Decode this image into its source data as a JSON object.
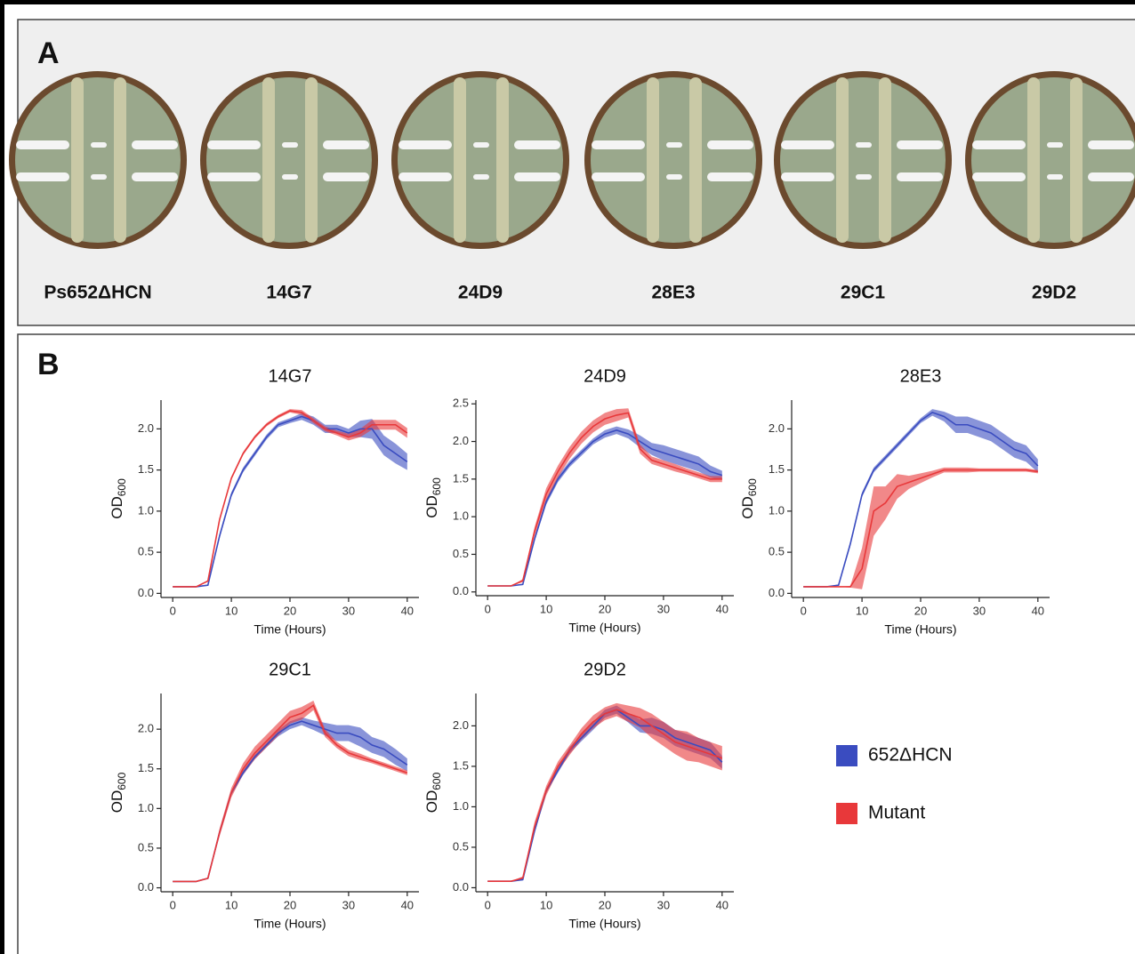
{
  "panel_a": {
    "label": "A",
    "plates": [
      "Ps652ΔHCN",
      "14G7",
      "24D9",
      "28E3",
      "29C1",
      "29D2"
    ]
  },
  "panel_b": {
    "label": "B"
  },
  "chart_data": [
    {
      "type": "line",
      "title": "14G7",
      "xlabel": "Time (Hours)",
      "ylabel": "OD",
      "ylabel_sub": "600",
      "x": [
        0,
        2,
        4,
        6,
        8,
        10,
        12,
        14,
        16,
        18,
        20,
        22,
        24,
        26,
        28,
        30,
        32,
        34,
        36,
        38,
        40
      ],
      "xlim": [
        -2,
        42
      ],
      "xticks": [
        0,
        10,
        20,
        30,
        40
      ],
      "ylim": [
        -0.05,
        2.35
      ],
      "yticks": [
        {
          "value": 0,
          "label": "0.0"
        },
        0.5,
        {
          "value": 1,
          "label": "1.0"
        },
        1.5,
        {
          "value": 2,
          "label": "2.0"
        }
      ],
      "series": [
        {
          "name": "652ΔHCN",
          "color": "#3a4cc0",
          "values": [
            0.08,
            0.08,
            0.08,
            0.1,
            0.7,
            1.2,
            1.5,
            1.7,
            1.9,
            2.05,
            2.1,
            2.15,
            2.1,
            2.0,
            2.0,
            1.95,
            2.0,
            2.0,
            1.8,
            1.7,
            1.6
          ],
          "error": [
            0,
            0,
            0,
            0.01,
            0.03,
            0.03,
            0.03,
            0.03,
            0.03,
            0.03,
            0.03,
            0.04,
            0.05,
            0.05,
            0.05,
            0.05,
            0.1,
            0.12,
            0.12,
            0.12,
            0.1
          ]
        },
        {
          "name": "Mutant",
          "color": "#e8383a",
          "values": [
            0.08,
            0.08,
            0.08,
            0.15,
            0.9,
            1.4,
            1.7,
            1.9,
            2.05,
            2.15,
            2.22,
            2.2,
            2.1,
            2.0,
            1.95,
            1.9,
            1.95,
            2.05,
            2.05,
            2.05,
            1.95
          ],
          "error": [
            0,
            0,
            0,
            0.01,
            0.02,
            0.02,
            0.02,
            0.02,
            0.02,
            0.02,
            0.02,
            0.03,
            0.03,
            0.03,
            0.03,
            0.04,
            0.05,
            0.06,
            0.06,
            0.06,
            0.06
          ]
        }
      ]
    },
    {
      "type": "line",
      "title": "24D9",
      "xlabel": "Time (Hours)",
      "ylabel": "OD",
      "ylabel_sub": "600",
      "x": [
        0,
        2,
        4,
        6,
        8,
        10,
        12,
        14,
        16,
        18,
        20,
        22,
        24,
        26,
        28,
        30,
        32,
        34,
        36,
        38,
        40
      ],
      "xlim": [
        -2,
        42
      ],
      "xticks": [
        0,
        10,
        20,
        30,
        40
      ],
      "ylim": [
        -0.05,
        2.55
      ],
      "yticks": [
        {
          "value": 0,
          "label": "0.0"
        },
        0.5,
        {
          "value": 1,
          "label": "1.0"
        },
        1.5,
        {
          "value": 2,
          "label": "2.0"
        },
        2.5
      ],
      "series": [
        {
          "name": "652ΔHCN",
          "color": "#3a4cc0",
          "values": [
            0.08,
            0.08,
            0.08,
            0.1,
            0.7,
            1.2,
            1.5,
            1.7,
            1.85,
            2.0,
            2.1,
            2.15,
            2.1,
            2.0,
            1.9,
            1.85,
            1.8,
            1.75,
            1.7,
            1.6,
            1.55
          ],
          "error": [
            0,
            0,
            0,
            0.01,
            0.03,
            0.04,
            0.04,
            0.04,
            0.04,
            0.04,
            0.05,
            0.05,
            0.06,
            0.08,
            0.08,
            0.1,
            0.1,
            0.1,
            0.1,
            0.08,
            0.06
          ]
        },
        {
          "name": "Mutant",
          "color": "#e8383a",
          "values": [
            0.08,
            0.08,
            0.08,
            0.15,
            0.8,
            1.3,
            1.6,
            1.85,
            2.05,
            2.2,
            2.3,
            2.35,
            2.38,
            1.9,
            1.75,
            1.7,
            1.65,
            1.6,
            1.55,
            1.5,
            1.5
          ],
          "error": [
            0,
            0,
            0,
            0.02,
            0.06,
            0.08,
            0.08,
            0.08,
            0.08,
            0.08,
            0.08,
            0.08,
            0.06,
            0.06,
            0.05,
            0.05,
            0.05,
            0.04,
            0.04,
            0.04,
            0.04
          ]
        }
      ]
    },
    {
      "type": "line",
      "title": "28E3",
      "xlabel": "Time (Hours)",
      "ylabel": "OD",
      "ylabel_sub": "600",
      "x": [
        0,
        2,
        4,
        6,
        8,
        10,
        12,
        14,
        16,
        18,
        20,
        22,
        24,
        26,
        28,
        30,
        32,
        34,
        36,
        38,
        40
      ],
      "xlim": [
        -2,
        42
      ],
      "xticks": [
        0,
        10,
        20,
        30,
        40
      ],
      "ylim": [
        -0.05,
        2.35
      ],
      "yticks": [
        {
          "value": 0,
          "label": "0.0"
        },
        0.5,
        {
          "value": 1,
          "label": "1.0"
        },
        1.5,
        {
          "value": 2,
          "label": "2.0"
        }
      ],
      "series": [
        {
          "name": "652ΔHCN",
          "color": "#3a4cc0",
          "values": [
            0.08,
            0.08,
            0.08,
            0.1,
            0.6,
            1.2,
            1.5,
            1.65,
            1.8,
            1.95,
            2.1,
            2.2,
            2.15,
            2.05,
            2.05,
            2.0,
            1.95,
            1.85,
            1.75,
            1.7,
            1.55
          ],
          "error": [
            0,
            0,
            0,
            0.01,
            0.03,
            0.03,
            0.03,
            0.03,
            0.03,
            0.03,
            0.03,
            0.04,
            0.06,
            0.1,
            0.1,
            0.1,
            0.1,
            0.1,
            0.1,
            0.1,
            0.08
          ]
        },
        {
          "name": "Mutant",
          "color": "#e8383a",
          "values": [
            0.08,
            0.08,
            0.08,
            0.08,
            0.08,
            0.3,
            1.0,
            1.1,
            1.3,
            1.35,
            1.4,
            1.45,
            1.5,
            1.5,
            1.5,
            1.5,
            1.5,
            1.5,
            1.5,
            1.5,
            1.48
          ],
          "error": [
            0,
            0,
            0,
            0,
            0.01,
            0.25,
            0.3,
            0.2,
            0.15,
            0.08,
            0.06,
            0.04,
            0.03,
            0.03,
            0.03,
            0.02,
            0.02,
            0.02,
            0.02,
            0.02,
            0.02
          ]
        }
      ]
    },
    {
      "type": "line",
      "title": "29C1",
      "xlabel": "Time (Hours)",
      "ylabel": "OD",
      "ylabel_sub": "600",
      "x": [
        0,
        2,
        4,
        6,
        8,
        10,
        12,
        14,
        16,
        18,
        20,
        22,
        24,
        26,
        28,
        30,
        32,
        34,
        36,
        38,
        40
      ],
      "xlim": [
        -2,
        42
      ],
      "xticks": [
        0,
        10,
        20,
        30,
        40
      ],
      "ylim": [
        -0.05,
        2.45
      ],
      "yticks": [
        {
          "value": 0,
          "label": "0.0"
        },
        0.5,
        {
          "value": 1,
          "label": "1.0"
        },
        1.5,
        {
          "value": 2,
          "label": "2.0"
        }
      ],
      "series": [
        {
          "name": "652ΔHCN",
          "color": "#3a4cc0",
          "values": [
            0.08,
            0.08,
            0.08,
            0.12,
            0.7,
            1.2,
            1.45,
            1.65,
            1.8,
            1.95,
            2.05,
            2.1,
            2.05,
            2.0,
            1.95,
            1.95,
            1.9,
            1.8,
            1.75,
            1.65,
            1.55
          ],
          "error": [
            0,
            0,
            0,
            0.01,
            0.03,
            0.03,
            0.03,
            0.03,
            0.03,
            0.04,
            0.05,
            0.05,
            0.06,
            0.08,
            0.1,
            0.1,
            0.12,
            0.1,
            0.1,
            0.1,
            0.08
          ]
        },
        {
          "name": "Mutant",
          "color": "#e8383a",
          "values": [
            0.08,
            0.08,
            0.08,
            0.12,
            0.7,
            1.2,
            1.5,
            1.7,
            1.85,
            2.0,
            2.15,
            2.2,
            2.3,
            1.95,
            1.8,
            1.7,
            1.65,
            1.6,
            1.55,
            1.5,
            1.45
          ],
          "error": [
            0,
            0,
            0,
            0.01,
            0.05,
            0.06,
            0.07,
            0.08,
            0.08,
            0.08,
            0.08,
            0.08,
            0.06,
            0.05,
            0.04,
            0.04,
            0.04,
            0.03,
            0.03,
            0.03,
            0.03
          ]
        }
      ]
    },
    {
      "type": "line",
      "title": "29D2",
      "xlabel": "Time (Hours)",
      "ylabel": "OD",
      "ylabel_sub": "600",
      "x": [
        0,
        2,
        4,
        6,
        8,
        10,
        12,
        14,
        16,
        18,
        20,
        22,
        24,
        26,
        28,
        30,
        32,
        34,
        36,
        38,
        40
      ],
      "xlim": [
        -2,
        42
      ],
      "xticks": [
        0,
        10,
        20,
        30,
        40
      ],
      "ylim": [
        -0.05,
        2.4
      ],
      "yticks": [
        {
          "value": 0,
          "label": "0.0"
        },
        0.5,
        {
          "value": 1,
          "label": "1.0"
        },
        1.5,
        {
          "value": 2,
          "label": "2.0"
        }
      ],
      "series": [
        {
          "name": "652ΔHCN",
          "color": "#3a4cc0",
          "values": [
            0.08,
            0.08,
            0.08,
            0.1,
            0.7,
            1.2,
            1.45,
            1.7,
            1.85,
            2.0,
            2.15,
            2.2,
            2.1,
            2.0,
            2.0,
            1.95,
            1.85,
            1.8,
            1.75,
            1.7,
            1.55
          ],
          "error": [
            0,
            0,
            0,
            0.01,
            0.03,
            0.03,
            0.03,
            0.04,
            0.04,
            0.05,
            0.05,
            0.05,
            0.06,
            0.08,
            0.1,
            0.1,
            0.1,
            0.1,
            0.1,
            0.1,
            0.08
          ]
        },
        {
          "name": "Mutant",
          "color": "#e8383a",
          "values": [
            0.08,
            0.08,
            0.08,
            0.12,
            0.75,
            1.2,
            1.5,
            1.7,
            1.9,
            2.05,
            2.15,
            2.2,
            2.15,
            2.1,
            2.0,
            1.9,
            1.8,
            1.75,
            1.7,
            1.65,
            1.6
          ],
          "error": [
            0,
            0,
            0,
            0.02,
            0.06,
            0.06,
            0.06,
            0.06,
            0.07,
            0.08,
            0.08,
            0.08,
            0.1,
            0.12,
            0.15,
            0.15,
            0.15,
            0.18,
            0.15,
            0.15,
            0.15
          ]
        }
      ]
    }
  ]
}
